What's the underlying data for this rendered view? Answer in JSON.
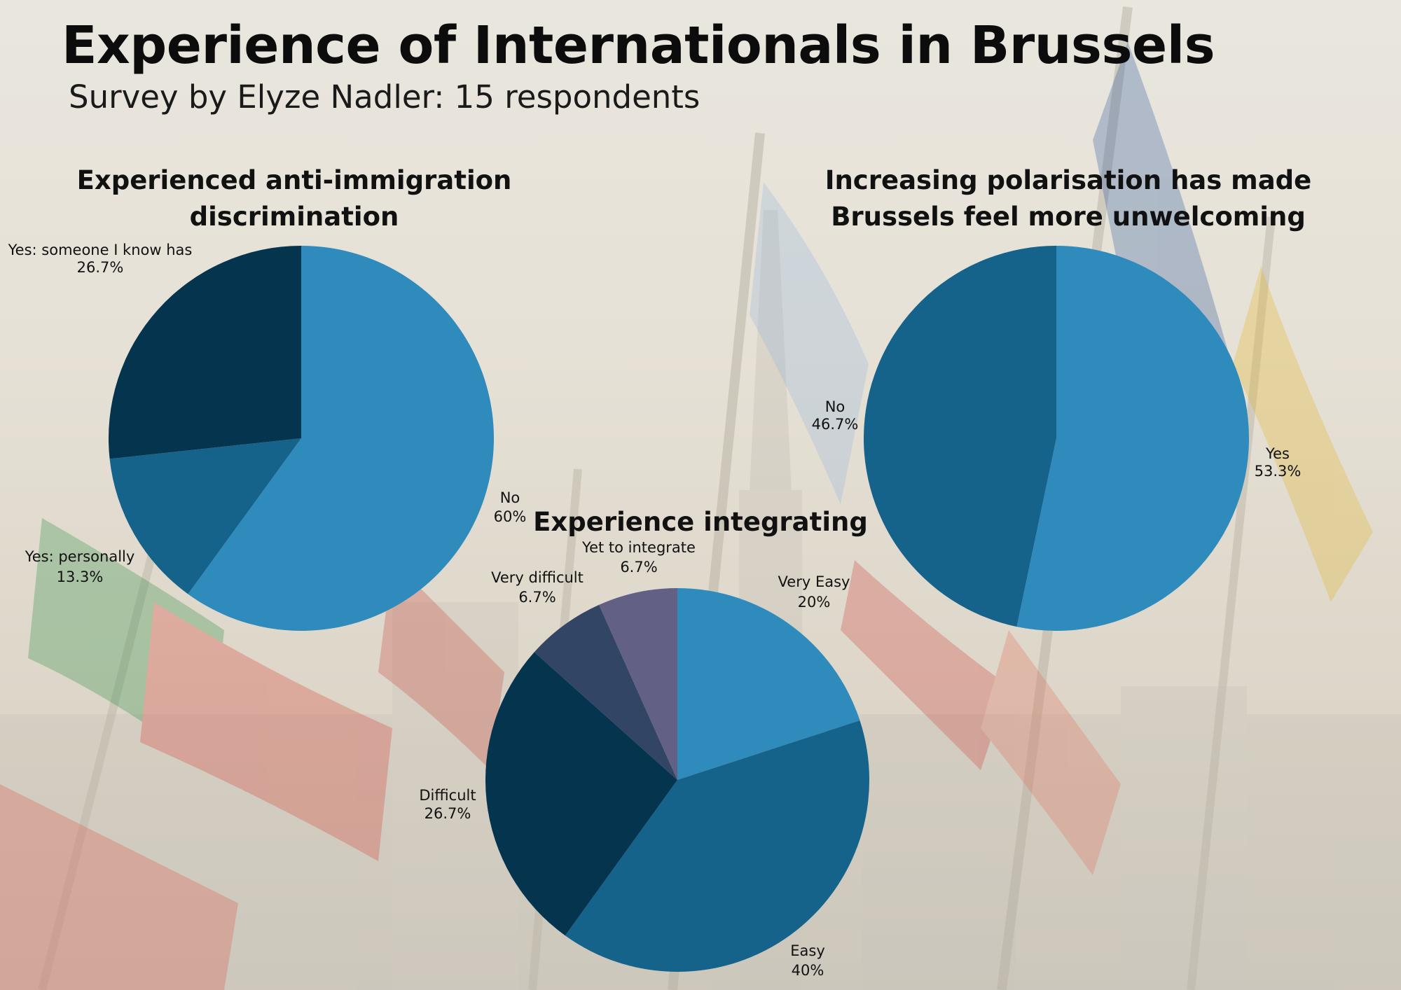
{
  "header": {
    "title": "Experience of Internationals in Brussels",
    "subtitle": "Survey by Elyze Nadler: 15 respondents"
  },
  "colors": {
    "light_blue": "#2e8bbb",
    "mid_blue": "#15628b",
    "dark_navy": "#05344f",
    "slate": "#334565",
    "purple": "#636085"
  },
  "chart_data": [
    {
      "type": "pie",
      "title": "Experienced anti-immigration discrimination",
      "slices": [
        {
          "label": "No",
          "value": 60,
          "display": "60%",
          "color": "#2e8bbb"
        },
        {
          "label": "Yes: personally",
          "value": 13.3,
          "display": "13.3%",
          "color": "#15628b"
        },
        {
          "label": "Yes: someone I know has",
          "value": 26.7,
          "display": "26.7%",
          "color": "#05344f"
        }
      ]
    },
    {
      "type": "pie",
      "title": "Increasing polarisation has made Brussels feel more unwelcoming",
      "slices": [
        {
          "label": "Yes",
          "value": 53.3,
          "display": "53.3%",
          "color": "#2e8bbb"
        },
        {
          "label": "No",
          "value": 46.7,
          "display": "46.7%",
          "color": "#15628b"
        }
      ]
    },
    {
      "type": "pie",
      "title": "Experience integrating",
      "slices": [
        {
          "label": "Very Easy",
          "value": 20,
          "display": "20%",
          "color": "#2e8bbb"
        },
        {
          "label": "Easy",
          "value": 40,
          "display": "40%",
          "color": "#15628b"
        },
        {
          "label": "Difficult",
          "value": 26.7,
          "display": "26.7%",
          "color": "#05344f"
        },
        {
          "label": "Very difficult",
          "value": 6.7,
          "display": "6.7%",
          "color": "#334565"
        },
        {
          "label": "Yet to integrate",
          "value": 6.7,
          "display": "6.7%",
          "color": "#636085"
        }
      ]
    }
  ]
}
